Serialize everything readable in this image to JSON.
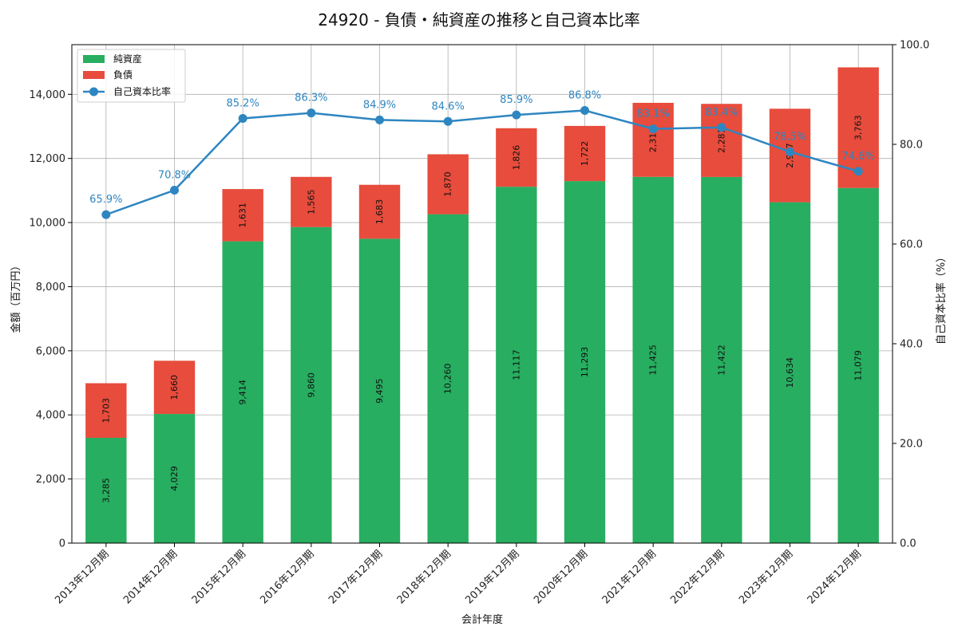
{
  "chart_data": {
    "type": "bar",
    "title": "24920 - 負債・純資産の推移と自己資本比率",
    "xlabel": "会計年度",
    "ylabel": "金額（百万円）",
    "y2label": "自己資本比率（%）",
    "ylim": [
      0,
      15550
    ],
    "y2lim": [
      0,
      100
    ],
    "yticks": [
      0,
      2000,
      4000,
      6000,
      8000,
      10000,
      12000,
      14000
    ],
    "y2ticks": [
      0,
      20,
      40,
      60,
      80,
      100
    ],
    "grid": true,
    "legend_position": "top-left",
    "categories": [
      "2013年12月期",
      "2014年12月期",
      "2015年12月期",
      "2016年12月期",
      "2017年12月期",
      "2018年12月期",
      "2019年12月期",
      "2020年12月期",
      "2021年12月期",
      "2022年12月期",
      "2023年12月期",
      "2024年12月期"
    ],
    "series": [
      {
        "name": "純資産",
        "kind": "bar",
        "color": "#27ae60",
        "values": [
          3285,
          4029,
          9414,
          9860,
          9495,
          10260,
          11117,
          11293,
          11425,
          11422,
          10634,
          11079
        ]
      },
      {
        "name": "負債",
        "kind": "bar",
        "color": "#e74c3c",
        "values": [
          1703,
          1660,
          1631,
          1565,
          1683,
          1870,
          1826,
          1722,
          2310,
          2281,
          2917,
          3763
        ]
      },
      {
        "name": "自己資本比率",
        "kind": "line",
        "axis": "right",
        "color": "#2e86c1",
        "values": [
          65.9,
          70.8,
          85.2,
          86.3,
          84.9,
          84.6,
          85.9,
          86.8,
          83.1,
          83.4,
          78.5,
          74.6
        ]
      }
    ]
  }
}
